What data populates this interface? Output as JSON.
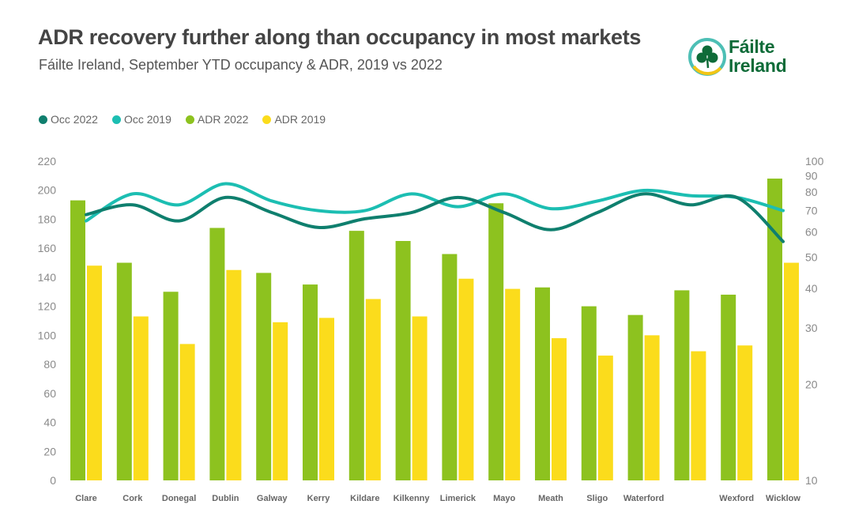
{
  "title": "ADR recovery further along than occupancy in most markets",
  "subtitle": "Fáilte Ireland, September YTD occupancy & ADR, 2019 vs 2022",
  "logo": {
    "line1": "Fáilte",
    "line2": "Ireland"
  },
  "colors": {
    "occ2022": "#0f7f6e",
    "occ2019": "#1cbeb2",
    "adr2022": "#8dc21f",
    "adr2019": "#fbdc1c",
    "logo_green": "#0e6b38",
    "logo_teal": "#4dbfb5",
    "logo_yellow": "#f2c515"
  },
  "legend": [
    {
      "label": "Occ 2022",
      "color": "#0f7f6e"
    },
    {
      "label": "Occ 2019",
      "color": "#1cbeb2"
    },
    {
      "label": "ADR 2022",
      "color": "#8dc21f"
    },
    {
      "label": "ADR 2019",
      "color": "#fbdc1c"
    }
  ],
  "chart_data": {
    "type": "bar",
    "title": "ADR recovery further along than occupancy in most markets",
    "subtitle": "Fáilte Ireland, September YTD occupancy & ADR, 2019 vs 2022",
    "categories": [
      "Clare",
      "Cork",
      "Donegal",
      "Dublin",
      "Galway",
      "Kerry",
      "Kildare",
      "Kilkenny",
      "Limerick",
      "Mayo",
      "Meath",
      "Sligo",
      "Waterford",
      "",
      "Wexford",
      "Wicklow"
    ],
    "left_axis": {
      "ylim": [
        0,
        220
      ],
      "ticks": [
        0,
        20,
        40,
        60,
        80,
        100,
        120,
        140,
        160,
        180,
        200,
        220
      ]
    },
    "right_axis": {
      "scale": "log",
      "ylim": [
        10,
        100
      ],
      "ticks": [
        10,
        20,
        30,
        40,
        50,
        60,
        70,
        80,
        90,
        100
      ]
    },
    "series": [
      {
        "name": "ADR 2022",
        "type": "bar",
        "axis": "left",
        "values": [
          193,
          150,
          130,
          174,
          143,
          135,
          172,
          165,
          156,
          191,
          133,
          120,
          114,
          131,
          128,
          208
        ]
      },
      {
        "name": "ADR 2019",
        "type": "bar",
        "axis": "left",
        "values": [
          148,
          113,
          94,
          145,
          109,
          112,
          125,
          113,
          139,
          132,
          98,
          86,
          100,
          89,
          93,
          150
        ]
      },
      {
        "name": "Occ 2022",
        "type": "line",
        "axis": "right",
        "values": [
          68,
          73,
          65,
          77,
          69,
          62,
          66,
          69,
          77,
          69,
          61,
          69,
          79,
          73,
          77,
          56
        ]
      },
      {
        "name": "Occ 2019",
        "type": "line",
        "axis": "right",
        "values": [
          65,
          79,
          73,
          85,
          75,
          70,
          70,
          79,
          72,
          79,
          71,
          75,
          81,
          78,
          77,
          70
        ]
      }
    ],
    "legend_position": "top-left",
    "grid": false
  }
}
